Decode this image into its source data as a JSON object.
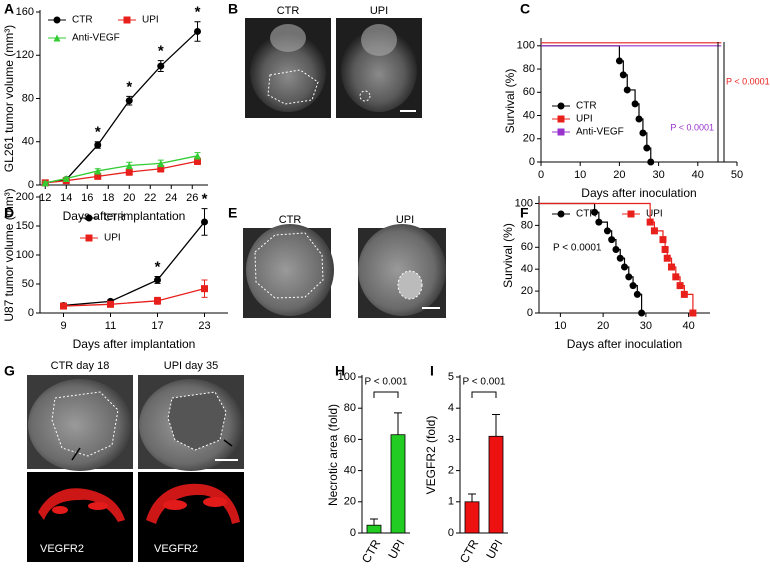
{
  "panel_labels": [
    "A",
    "B",
    "C",
    "D",
    "E",
    "F",
    "G",
    "H",
    "I"
  ],
  "image_labels": [
    [
      "CTR",
      "UPI"
    ],
    [
      "CTR",
      "UPI"
    ],
    [
      "CTR  day 18",
      "UPI day 35",
      "VEGFR2",
      "VEGFR2"
    ]
  ],
  "chart_data": [
    {
      "type": "line",
      "ylabel": "GL261 tumor volume (mm³)",
      "xlabel": "Days after implantation",
      "x": [
        12,
        14,
        17,
        20,
        23,
        26.5
      ],
      "xlim": [
        11.5,
        27.5
      ],
      "xticks": [
        12,
        14,
        16,
        18,
        20,
        22,
        24,
        26
      ],
      "ylim": [
        0,
        160
      ],
      "yticks": [
        0,
        40,
        80,
        120,
        160
      ],
      "significance": [
        null,
        null,
        "*",
        "*",
        "*",
        "*"
      ],
      "series": [
        {
          "name": "CTR",
          "color": "#000000",
          "marker": "circle",
          "values": [
            2,
            5,
            37,
            78,
            110,
            142
          ],
          "errors": [
            1,
            1,
            3,
            4,
            5,
            9
          ]
        },
        {
          "name": "UPI",
          "color": "#e8201c",
          "marker": "square",
          "values": [
            2,
            4,
            8,
            12,
            15,
            22
          ],
          "errors": [
            1,
            1,
            2,
            3,
            3,
            3
          ]
        },
        {
          "name": "Anti-VEGF",
          "color": "#33cc33",
          "marker": "triangle",
          "values": [
            2,
            6,
            13,
            18,
            20,
            27
          ],
          "errors": [
            1,
            1,
            2,
            3,
            3,
            3
          ]
        }
      ]
    },
    {
      "type": "step",
      "ylabel": "Survival (%)",
      "xlabel": "Days after inoculation",
      "xlim": [
        0,
        50
      ],
      "xticks": [
        0,
        10,
        20,
        30,
        40,
        50
      ],
      "ylim": [
        0,
        105
      ],
      "yticks": [
        0,
        20,
        40,
        60,
        80,
        100
      ],
      "series": [
        {
          "name": "CTR",
          "color": "#000000",
          "marker": "circle",
          "x": [
            0,
            20,
            21,
            22,
            24,
            25,
            26,
            27,
            28
          ],
          "values": [
            100,
            87,
            75,
            62,
            50,
            37,
            25,
            12,
            0
          ]
        },
        {
          "name": "UPI",
          "color": "#e8201c",
          "marker": "square",
          "x": [
            0,
            46
          ],
          "values": [
            100,
            100
          ]
        },
        {
          "name": "Anti-VEGF",
          "color": "#9933cc",
          "marker": "square",
          "x": [
            0,
            46
          ],
          "values": [
            100,
            100
          ]
        }
      ],
      "annotations": [
        {
          "text": "P < 0.0001",
          "color": "#9933cc"
        },
        {
          "text": "P < 0.0001",
          "color": "#e8201c"
        }
      ]
    },
    {
      "type": "line",
      "ylabel": "U87 tumor volume (mm³)",
      "xlabel": "Days after implantation",
      "categories": [
        "9",
        "11",
        "17",
        "23"
      ],
      "ylim": [
        0,
        200
      ],
      "yticks": [
        0,
        50,
        100,
        150,
        200
      ],
      "significance": [
        null,
        null,
        "*",
        "*"
      ],
      "series": [
        {
          "name": "CTR",
          "color": "#000000",
          "marker": "circle",
          "values": [
            13,
            20,
            57,
            157
          ],
          "errors": [
            3,
            3,
            6,
            23
          ]
        },
        {
          "name": "UPI",
          "color": "#e8201c",
          "marker": "square",
          "values": [
            12,
            15,
            21,
            42
          ],
          "errors": [
            2,
            2,
            6,
            15
          ]
        }
      ]
    },
    {
      "type": "step",
      "ylabel": "Survival (%)",
      "xlabel": "Days after inoculation",
      "xlim": [
        5,
        45
      ],
      "xticks": [
        10,
        20,
        30,
        40
      ],
      "ylim": [
        0,
        105
      ],
      "yticks": [
        0,
        20,
        40,
        60,
        80,
        100
      ],
      "series": [
        {
          "name": "CTR",
          "color": "#000000",
          "marker": "circle",
          "x": [
            5,
            18,
            19,
            21,
            22,
            23,
            24,
            25,
            26,
            27,
            28,
            29
          ],
          "values": [
            100,
            92,
            83,
            75,
            67,
            58,
            50,
            42,
            33,
            25,
            17,
            0
          ]
        },
        {
          "name": "UPI",
          "color": "#e8201c",
          "marker": "square",
          "x": [
            5,
            31,
            32,
            34,
            34.5,
            35,
            36,
            37,
            38,
            39,
            41
          ],
          "values": [
            100,
            83,
            75,
            67,
            58,
            50,
            42,
            33,
            25,
            17,
            0
          ]
        }
      ],
      "annotations": [
        {
          "text": "P < 0.0001",
          "color": "#000000"
        }
      ]
    },
    {
      "type": "bar",
      "ylabel": "Necrotic area (fold)",
      "categories": [
        "CTR",
        "UPI"
      ],
      "values": [
        5,
        63
      ],
      "errors": [
        4,
        14
      ],
      "color": "#22cc22",
      "ylim": [
        0,
        100
      ],
      "yticks": [
        0,
        20,
        40,
        60,
        80,
        100
      ],
      "annotations": [
        {
          "text": "P < 0.001",
          "color": "#000000"
        }
      ]
    },
    {
      "type": "bar",
      "ylabel": "VEGFR2 (fold)",
      "categories": [
        "CTR",
        "UPI"
      ],
      "values": [
        1,
        3.1
      ],
      "errors": [
        0.25,
        0.7
      ],
      "color": "#ee1111",
      "ylim": [
        0,
        5
      ],
      "yticks": [
        0,
        1,
        2,
        3,
        4,
        5
      ],
      "annotations": [
        {
          "text": "P < 0.001",
          "color": "#000000"
        }
      ]
    }
  ]
}
